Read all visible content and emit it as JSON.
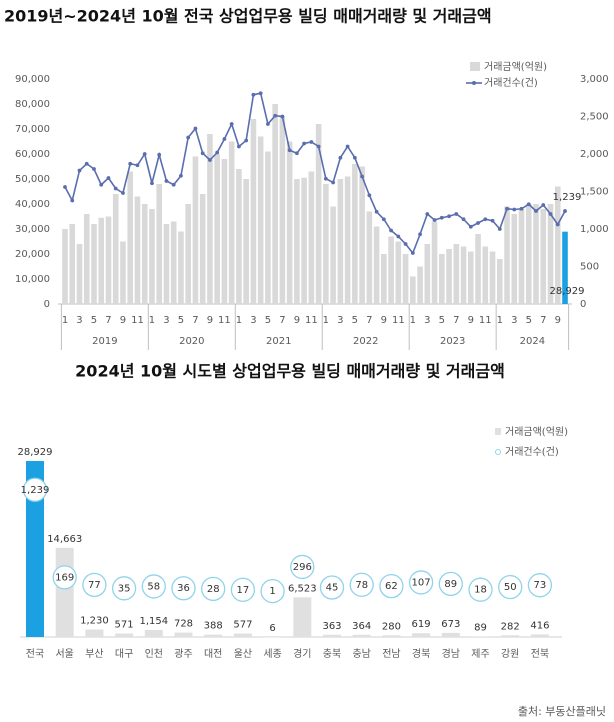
{
  "chart_data": [
    {
      "type": "combo",
      "title": "2019년~2024년 10월 전국 상업업무용 빌딩 매매거래량 및 거래금액",
      "categories": [
        "1",
        null,
        "3",
        null,
        "5",
        null,
        "7",
        null,
        "9",
        null,
        "11",
        null,
        "1",
        null,
        "3",
        null,
        "5",
        null,
        "7",
        null,
        "9",
        null,
        "11",
        null,
        "1",
        null,
        "3",
        null,
        "5",
        null,
        "7",
        null,
        "9",
        null,
        "11",
        null,
        "1",
        null,
        "3",
        null,
        "5",
        null,
        "7",
        null,
        "9",
        null,
        "11",
        null,
        "1",
        null,
        "3",
        null,
        "5",
        null,
        "7",
        null,
        "9",
        null,
        "11",
        null,
        "1",
        null,
        "3",
        null,
        "5",
        null,
        "7",
        null,
        "9",
        null
      ],
      "x_groups": [
        "2019",
        "2020",
        "2021",
        "2022",
        "2023",
        "2024"
      ],
      "series": [
        {
          "name": "거래금액(억원)",
          "type": "bar",
          "color": "#d9d9d9",
          "colors": [
            "#d9d9d9",
            "#d9d9d9",
            "#d9d9d9",
            "#d9d9d9",
            "#d9d9d9",
            "#d9d9d9",
            "#d9d9d9",
            "#d9d9d9",
            "#d9d9d9",
            "#d9d9d9",
            "#d9d9d9",
            "#d9d9d9",
            "#d9d9d9",
            "#d9d9d9",
            "#d9d9d9",
            "#d9d9d9",
            "#d9d9d9",
            "#d9d9d9",
            "#d9d9d9",
            "#d9d9d9",
            "#d9d9d9",
            "#d9d9d9",
            "#d9d9d9",
            "#d9d9d9",
            "#d9d9d9",
            "#d9d9d9",
            "#d9d9d9",
            "#d9d9d9",
            "#d9d9d9",
            "#d9d9d9",
            "#d9d9d9",
            "#d9d9d9",
            "#d9d9d9",
            "#d9d9d9",
            "#d9d9d9",
            "#d9d9d9",
            "#d9d9d9",
            "#d9d9d9",
            "#d9d9d9",
            "#d9d9d9",
            "#d9d9d9",
            "#d9d9d9",
            "#d9d9d9",
            "#d9d9d9",
            "#d9d9d9",
            "#d9d9d9",
            "#d9d9d9",
            "#d9d9d9",
            "#d9d9d9",
            "#d9d9d9",
            "#d9d9d9",
            "#d9d9d9",
            "#d9d9d9",
            "#d9d9d9",
            "#d9d9d9",
            "#d9d9d9",
            "#d9d9d9",
            "#d9d9d9",
            "#d9d9d9",
            "#d9d9d9",
            "#d9d9d9",
            "#d9d9d9",
            "#d9d9d9",
            "#d9d9d9",
            "#d9d9d9",
            "#d9d9d9",
            "#d9d9d9",
            "#d9d9d9",
            "#d9d9d9",
            "#1ba1e2"
          ],
          "values": [
            30000,
            32000,
            24000,
            36000,
            32000,
            34500,
            35000,
            44000,
            25000,
            53000,
            43000,
            40000,
            38000,
            48000,
            32000,
            33000,
            29000,
            40000,
            59000,
            44000,
            68000,
            60000,
            58000,
            65000,
            54000,
            50000,
            74000,
            67000,
            61000,
            80000,
            75000,
            65000,
            50000,
            50500,
            53000,
            72000,
            48000,
            39000,
            50000,
            51000,
            56000,
            55000,
            37000,
            31000,
            20000,
            27000,
            25000,
            20000,
            11000,
            15000,
            24000,
            33000,
            20000,
            22000,
            24000,
            23000,
            21000,
            28000,
            23000,
            21000,
            18000,
            39000,
            36000,
            38000,
            40000,
            40000,
            38000,
            40000,
            47000,
            28929
          ],
          "value_labels": [
            null,
            null,
            null,
            null,
            null,
            null,
            null,
            null,
            null,
            null,
            null,
            null,
            null,
            null,
            null,
            null,
            null,
            null,
            null,
            null,
            null,
            null,
            null,
            null,
            null,
            null,
            null,
            null,
            null,
            null,
            null,
            null,
            null,
            null,
            null,
            null,
            null,
            null,
            null,
            null,
            null,
            null,
            null,
            null,
            null,
            null,
            null,
            null,
            null,
            null,
            null,
            null,
            null,
            null,
            null,
            null,
            null,
            null,
            null,
            null,
            null,
            null,
            null,
            null,
            null,
            null,
            null,
            null,
            null,
            "28,929"
          ]
        },
        {
          "name": "거래건수(건)",
          "type": "line",
          "axis": "y2",
          "color": "#5a6dae",
          "values": [
            1560,
            1380,
            1780,
            1870,
            1800,
            1590,
            1680,
            1540,
            1480,
            1870,
            1850,
            2000,
            1610,
            1990,
            1640,
            1590,
            1710,
            2220,
            2340,
            2010,
            1920,
            2020,
            2200,
            2400,
            2100,
            2180,
            2790,
            2810,
            2400,
            2510,
            2500,
            2050,
            2010,
            2140,
            2160,
            2100,
            1670,
            1620,
            1950,
            2100,
            1950,
            1700,
            1450,
            1230,
            1130,
            980,
            900,
            800,
            680,
            930,
            1200,
            1120,
            1150,
            1170,
            1200,
            1130,
            1030,
            1080,
            1130,
            1110,
            1000,
            1270,
            1260,
            1270,
            1330,
            1240,
            1320,
            1200,
            1060,
            1239
          ],
          "value_labels": [
            null,
            null,
            null,
            null,
            null,
            null,
            null,
            null,
            null,
            null,
            null,
            null,
            null,
            null,
            null,
            null,
            null,
            null,
            null,
            null,
            null,
            null,
            null,
            null,
            null,
            null,
            null,
            null,
            null,
            null,
            null,
            null,
            null,
            null,
            null,
            null,
            null,
            null,
            null,
            null,
            null,
            null,
            null,
            null,
            null,
            null,
            null,
            null,
            null,
            null,
            null,
            null,
            null,
            null,
            null,
            null,
            null,
            null,
            null,
            null,
            null,
            null,
            null,
            null,
            null,
            null,
            null,
            null,
            null,
            "1,239"
          ]
        }
      ],
      "ylim": [
        0,
        90000
      ],
      "yticks": [
        0,
        {
          "value": 10000,
          "label": "10,000"
        },
        {
          "value": 20000,
          "label": "20,000"
        },
        {
          "value": 30000,
          "label": "30,000"
        },
        {
          "value": 40000,
          "label": "40,000"
        },
        {
          "value": 50000,
          "label": "50,000"
        },
        {
          "value": 60000,
          "label": "60,000"
        },
        {
          "value": 70000,
          "label": "70,000"
        },
        {
          "value": 80000,
          "label": "80,000"
        },
        {
          "value": 90000,
          "label": "90,000"
        }
      ],
      "y2lim": [
        0,
        3000
      ],
      "y2ticks": [
        0,
        500,
        {
          "value": 1000,
          "label": "1,000"
        },
        {
          "value": 1500,
          "label": "1,500"
        },
        {
          "value": 2000,
          "label": "2,000"
        },
        {
          "value": 2500,
          "label": "2,500"
        },
        {
          "value": 3000,
          "label": "3,000"
        }
      ],
      "legend": "top-right"
    },
    {
      "type": "bar_bubble",
      "title": "2024년 10월 시도별 상업업무용 빌딩 매매거래량 및 거래금액",
      "categories": [
        "전국",
        "서울",
        "부산",
        "대구",
        "인천",
        "광주",
        "대전",
        "울산",
        "세종",
        "경기",
        "충북",
        "충남",
        "전남",
        "경북",
        "경남",
        "제주",
        "강원",
        "전북"
      ],
      "series": [
        {
          "name": "거래금액(억원)",
          "type": "bar",
          "color": "#e0e0e0",
          "colors": [
            "#1ba1e2",
            "#e0e0e0",
            "#e0e0e0",
            "#e0e0e0",
            "#e0e0e0",
            "#e0e0e0",
            "#e0e0e0",
            "#e0e0e0",
            "#e0e0e0",
            "#e0e0e0",
            "#e0e0e0",
            "#e0e0e0",
            "#e0e0e0",
            "#e0e0e0",
            "#e0e0e0",
            "#e0e0e0",
            "#e0e0e0",
            "#e0e0e0"
          ],
          "values": [
            28929,
            14663,
            1230,
            571,
            1154,
            728,
            388,
            577,
            6,
            6523,
            363,
            364,
            280,
            619,
            673,
            89,
            282,
            416
          ],
          "value_labels": [
            "28,929",
            "14,663",
            "1,230",
            "571",
            "1,154",
            "728",
            "388",
            "577",
            "6",
            "6,523",
            "363",
            "364",
            "280",
            "619",
            "673",
            "89",
            "282",
            "416"
          ]
        },
        {
          "name": "거래건수(건)",
          "type": "bubble",
          "axis": "y2",
          "color": "#8fd3ec",
          "values": [
            1239,
            169,
            77,
            35,
            58,
            36,
            28,
            17,
            1,
            296,
            45,
            78,
            62,
            107,
            89,
            18,
            50,
            73
          ],
          "value_labels": [
            "1,239",
            "169",
            "77",
            "35",
            "58",
            "36",
            "28",
            "17",
            "1",
            "296",
            "45",
            "78",
            "62",
            "107",
            "89",
            "18",
            "50",
            "73"
          ]
        }
      ],
      "ylim": [
        0,
        30000
      ],
      "y2lim": [
        -560,
        1670
      ],
      "legend": "top-right",
      "source": "출처: 부동산플래닛"
    }
  ]
}
